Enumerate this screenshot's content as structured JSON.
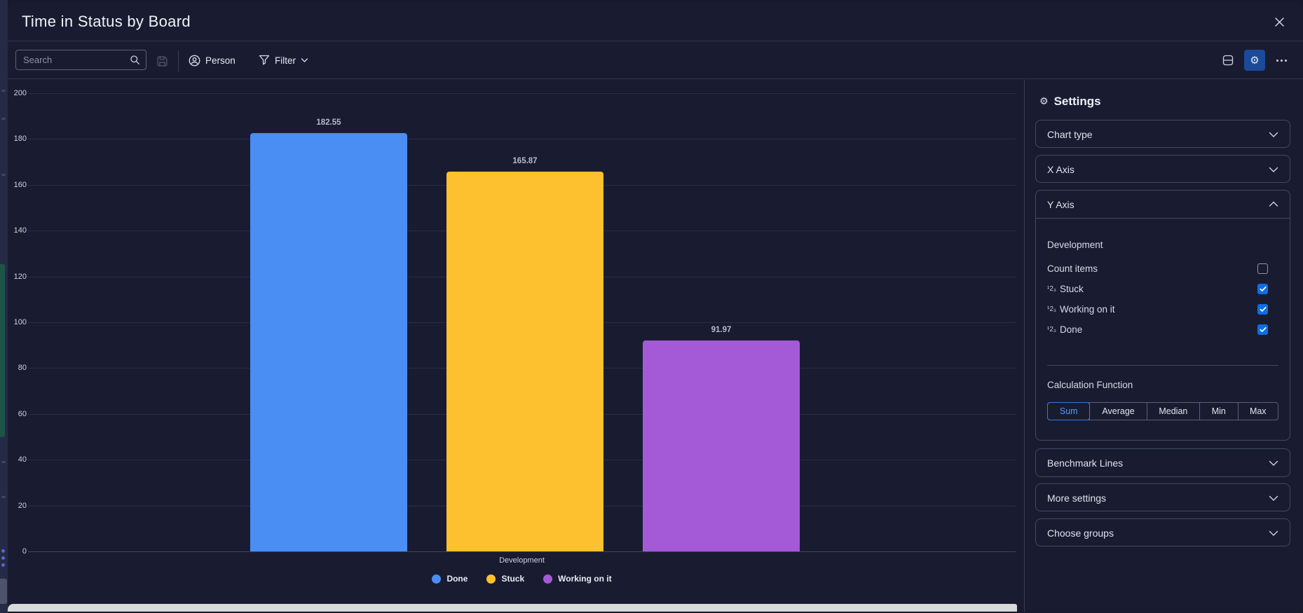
{
  "window": {
    "title": "Time in Status by Board"
  },
  "toolbar": {
    "search_placeholder": "Search",
    "person_label": "Person",
    "filter_label": "Filter"
  },
  "icons": {
    "settings_gear": "⚙",
    "numbers": "¹2₃"
  },
  "settings": {
    "title": "Settings",
    "sections": {
      "chart_type": {
        "label": "Chart type",
        "expanded": false
      },
      "x_axis": {
        "label": "X Axis",
        "expanded": false
      },
      "y_axis": {
        "label": "Y Axis",
        "expanded": true
      },
      "benchmark": {
        "label": "Benchmark Lines",
        "expanded": false
      },
      "more": {
        "label": "More settings",
        "expanded": false
      },
      "groups": {
        "label": "Choose groups",
        "expanded": false
      }
    },
    "y_axis_panel": {
      "group_title": "Development",
      "rows": [
        {
          "label": "Count items",
          "checked": false,
          "numbers_icon": false
        },
        {
          "label": "Stuck",
          "checked": true,
          "numbers_icon": true
        },
        {
          "label": "Working on it",
          "checked": true,
          "numbers_icon": true
        },
        {
          "label": "Done",
          "checked": true,
          "numbers_icon": true
        }
      ],
      "calculation_title": "Calculation Function",
      "calculation_options": [
        "Sum",
        "Average",
        "Median",
        "Min",
        "Max"
      ],
      "calculation_selected": "Sum"
    }
  },
  "chart_data": {
    "type": "bar",
    "title": "Time in Status by Board",
    "categories": [
      "Development"
    ],
    "series": [
      {
        "name": "Done",
        "values": [
          182.55
        ],
        "color": "#4a8ef4"
      },
      {
        "name": "Stuck",
        "values": [
          165.87
        ],
        "color": "#fdc12f"
      },
      {
        "name": "Working on it",
        "values": [
          91.97
        ],
        "color": "#a45ad6"
      }
    ],
    "ylim": [
      0,
      200
    ],
    "ytick_step": 20,
    "grid": true,
    "legend_position": "bottom",
    "value_labels": true,
    "xlabel": "Development"
  },
  "colors": {
    "accent_blue": "#0e6de4",
    "selected_text_blue": "#4f9aff",
    "modal_bg": "#191c31"
  }
}
